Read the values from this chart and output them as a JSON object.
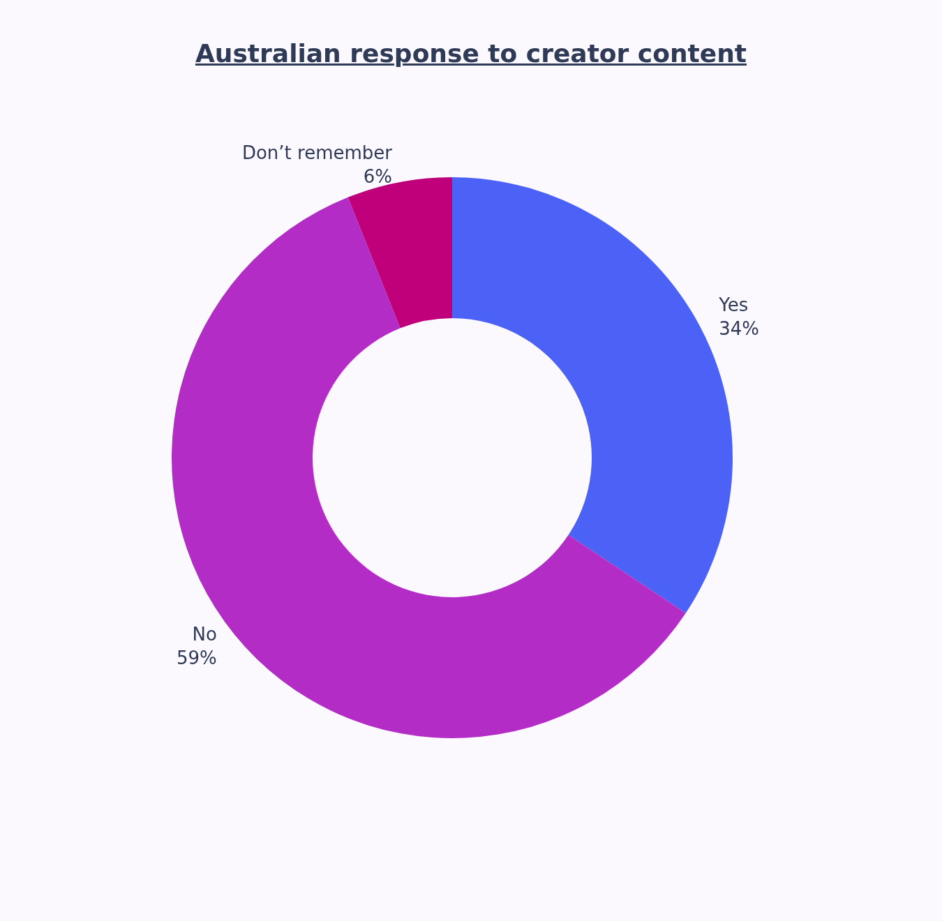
{
  "chart_data": {
    "type": "donut",
    "title": "Australian response to creator content",
    "categories": [
      "Yes",
      "No",
      "Don’t remember"
    ],
    "values": [
      34,
      59,
      6
    ],
    "value_labels": [
      "34%",
      "59%",
      "6%"
    ],
    "colors": [
      "#4c61f5",
      "#b42cc6",
      "#c0007a"
    ]
  }
}
